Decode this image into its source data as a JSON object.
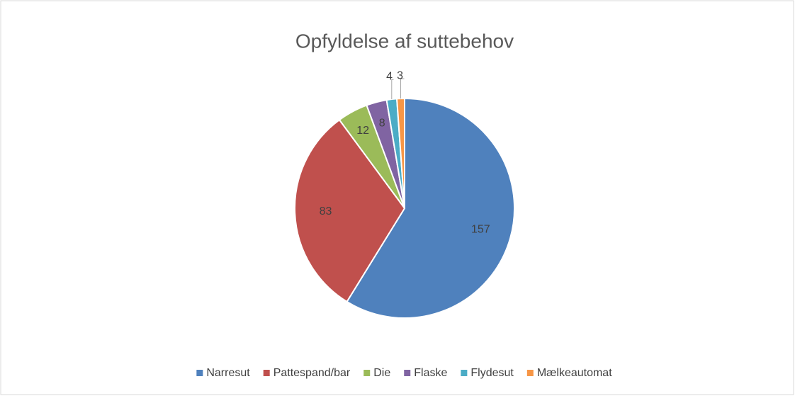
{
  "chart_data": {
    "type": "pie",
    "title": "Opfyldelse af suttebehov",
    "categories": [
      "Narresut",
      "Pattespand/bar",
      "Die",
      "Flaske",
      "Flydesut",
      "Mælkeautomat"
    ],
    "values": [
      157,
      83,
      12,
      8,
      4,
      3
    ],
    "colors": [
      "#4f81bd",
      "#c0504d",
      "#9bbb59",
      "#8064a2",
      "#4bacc6",
      "#f79646"
    ],
    "legend": "bottom"
  }
}
